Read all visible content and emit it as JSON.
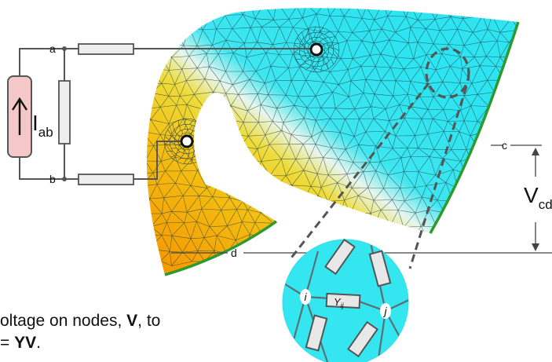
{
  "labels": {
    "node_a": "a",
    "node_b": "b",
    "node_c": "c",
    "node_d": "d",
    "current_main": "I",
    "current_sub": "ab",
    "voltage_main": "V",
    "voltage_sub": "cd",
    "node_i": "i",
    "node_j": "j",
    "admittance_main": "Y",
    "admittance_sub": "ij"
  },
  "caption": {
    "line1_start": "oltage on nodes, ",
    "line1_bold": "V",
    "line1_end": ", to",
    "line2_start": "= ",
    "line2_bold": "YV",
    "line2_end": "."
  },
  "colors": {
    "mesh_cyan": "#33e6f0",
    "mesh_yellow": "#f2d21e",
    "mesh_orange": "#f5a000",
    "edge_green": "#2e9a2e",
    "source_fill": "#f4c7c9",
    "resistor_fill": "#eeeeee",
    "wire": "#555555"
  }
}
